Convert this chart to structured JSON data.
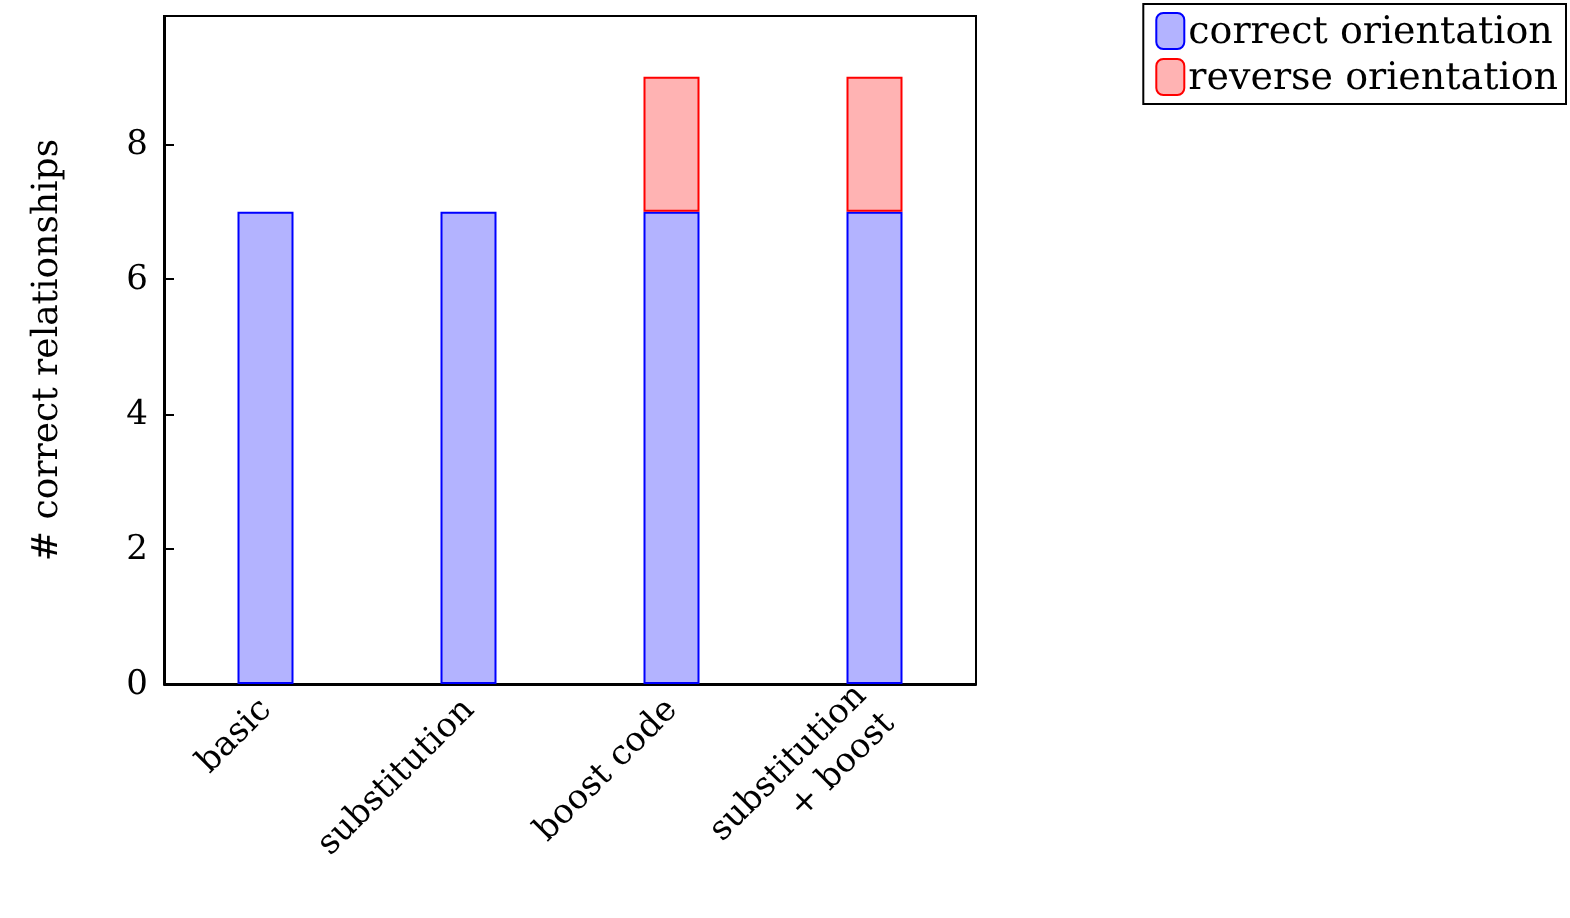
{
  "chart_data": {
    "type": "bar",
    "ylabel": "# correct relationships",
    "categories": [
      "basic",
      "substitution",
      "boost code",
      "substitution\n+ boost"
    ],
    "stacked": true,
    "legend": "top right",
    "series": [
      {
        "name": "correct orientation",
        "color": "#b3b3ff",
        "values": [
          7,
          7,
          7,
          7
        ]
      },
      {
        "name": "reverse orientation",
        "color": "#ffb3b3",
        "values": [
          null,
          null,
          2,
          2
        ]
      }
    ],
    "ylim": [
      0,
      9.9
    ],
    "yticks": [
      0,
      2,
      4,
      6,
      8
    ]
  }
}
